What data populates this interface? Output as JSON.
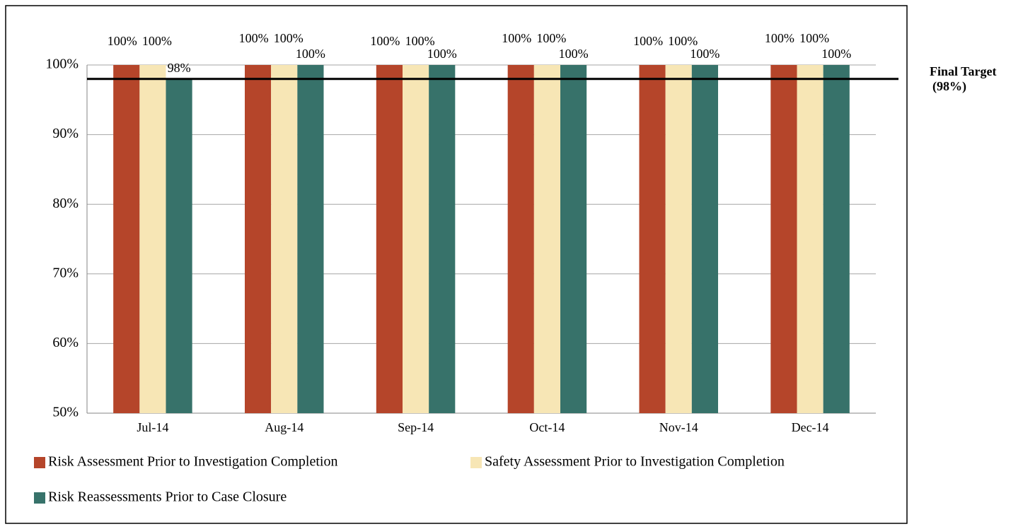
{
  "chart_data": {
    "type": "bar",
    "categories": [
      "Jul-14",
      "Aug-14",
      "Sep-14",
      "Oct-14",
      "Nov-14",
      "Dec-14"
    ],
    "series": [
      {
        "name": "Risk Assessment Prior to Investigation Completion",
        "color": "#b5452a",
        "values": [
          100,
          100,
          100,
          100,
          100,
          100
        ],
        "value_labels": [
          "100%",
          "100%",
          "100%",
          "100%",
          "100%",
          "100%"
        ]
      },
      {
        "name": "Safety Assessment Prior to Investigation Completion",
        "color": "#f7e6b5",
        "values": [
          100,
          100,
          100,
          100,
          100,
          100
        ],
        "value_labels": [
          "100%",
          "100%",
          "100%",
          "100%",
          "100%",
          "100%"
        ]
      },
      {
        "name": "Risk Reassessments Prior to Case Closure",
        "color": "#37726a",
        "values": [
          98,
          100,
          100,
          100,
          100,
          100
        ],
        "value_labels": [
          "98%",
          "100%",
          "100%",
          "100%",
          "100%",
          "100%"
        ]
      }
    ],
    "ylim": [
      50,
      100
    ],
    "yticks": [
      {
        "value": 50,
        "label": "50%"
      },
      {
        "value": 60,
        "label": "60%"
      },
      {
        "value": 70,
        "label": "70%"
      },
      {
        "value": 80,
        "label": "80%"
      },
      {
        "value": 90,
        "label": "90%"
      },
      {
        "value": 100,
        "label": "100%"
      }
    ],
    "grid": true,
    "legend": "bottom",
    "target": {
      "value": 98,
      "label": "Final Target",
      "value_label": "(98%)"
    }
  }
}
